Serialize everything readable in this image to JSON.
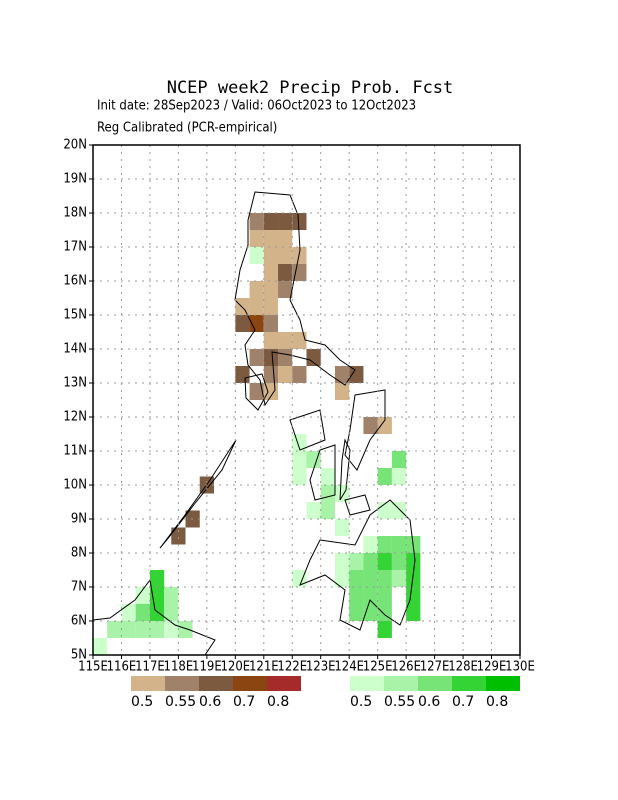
{
  "title": "NCEP week2 Precip Prob. Fcst",
  "subtitle": "Init date: 28Sep2023 / Valid: 06Oct2023 to 12Oct2023",
  "note": "Reg Calibrated (PCR-empirical)",
  "map": {
    "lonlim": [
      115,
      130
    ],
    "latlim": [
      5,
      20
    ],
    "grid": true,
    "lonticks": [
      {
        "value": 115,
        "label": "115E"
      },
      {
        "value": 116,
        "label": "116E"
      },
      {
        "value": 117,
        "label": "117E"
      },
      {
        "value": 118,
        "label": "118E"
      },
      {
        "value": 119,
        "label": "119E"
      },
      {
        "value": 120,
        "label": "120E"
      },
      {
        "value": 121,
        "label": "121E"
      },
      {
        "value": 122,
        "label": "122E"
      },
      {
        "value": 123,
        "label": "123E"
      },
      {
        "value": 124,
        "label": "124E"
      },
      {
        "value": 125,
        "label": "125E"
      },
      {
        "value": 126,
        "label": "126E"
      },
      {
        "value": 127,
        "label": "127E"
      },
      {
        "value": 128,
        "label": "128E"
      },
      {
        "value": 129,
        "label": "129E"
      },
      {
        "value": 130,
        "label": "130E"
      }
    ],
    "latticks": [
      {
        "value": 5,
        "label": "5N"
      },
      {
        "value": 6,
        "label": "6N"
      },
      {
        "value": 7,
        "label": "7N"
      },
      {
        "value": 8,
        "label": "8N"
      },
      {
        "value": 9,
        "label": "9N"
      },
      {
        "value": 10,
        "label": "10N"
      },
      {
        "value": 11,
        "label": "11N"
      },
      {
        "value": 12,
        "label": "12N"
      },
      {
        "value": 13,
        "label": "13N"
      },
      {
        "value": 14,
        "label": "14N"
      },
      {
        "value": 15,
        "label": "15N"
      },
      {
        "value": 16,
        "label": "16N"
      },
      {
        "value": 17,
        "label": "17N"
      },
      {
        "value": 18,
        "label": "18N"
      },
      {
        "value": 19,
        "label": "19N"
      },
      {
        "value": 20,
        "label": "20N"
      }
    ],
    "dry_legend": {
      "colors": [
        "#d3b48a",
        "#a0826a",
        "#7b5a40",
        "#8b4510",
        "#a52a2a"
      ],
      "labels": [
        0.5,
        0.55,
        0.6,
        0.7,
        0.8
      ]
    },
    "wet_legend": {
      "colors": [
        "#ccffcc",
        "#a8f3a8",
        "#76e476",
        "#33d433",
        "#00bf00"
      ],
      "labels": [
        0.5,
        0.55,
        0.6,
        0.7,
        0.8
      ]
    },
    "dry_cells": [
      [
        120.5,
        17.5,
        0.55
      ],
      [
        121,
        17.5,
        0.6
      ],
      [
        121.5,
        17.5,
        0.6
      ],
      [
        122,
        17.5,
        0.6
      ],
      [
        120.5,
        17,
        0.5
      ],
      [
        121,
        17,
        0.5
      ],
      [
        121.5,
        17,
        0.5
      ],
      [
        122,
        16.5,
        0.5
      ],
      [
        121,
        16.5,
        0.5
      ],
      [
        121.5,
        16.5,
        0.5
      ],
      [
        121,
        16,
        0.5
      ],
      [
        121.5,
        16,
        0.6
      ],
      [
        122,
        16,
        0.55
      ],
      [
        120.5,
        15.5,
        0.5
      ],
      [
        121,
        15.5,
        0.5
      ],
      [
        121.5,
        15.5,
        0.55
      ],
      [
        120,
        15,
        0.5
      ],
      [
        120.5,
        15,
        0.5
      ],
      [
        121,
        15,
        0.5
      ],
      [
        120,
        14.5,
        0.6
      ],
      [
        120.5,
        14.5,
        0.7
      ],
      [
        121,
        14.5,
        0.55
      ],
      [
        121,
        14,
        0.5
      ],
      [
        121.5,
        14,
        0.5
      ],
      [
        122,
        14,
        0.5
      ],
      [
        120.5,
        13.5,
        0.55
      ],
      [
        121,
        13.5,
        0.6
      ],
      [
        121.5,
        13.5,
        0.55
      ],
      [
        122.5,
        13.5,
        0.6
      ],
      [
        120,
        13,
        0.6
      ],
      [
        121,
        13,
        0.55
      ],
      [
        121.5,
        13,
        0.5
      ],
      [
        122,
        13,
        0.55
      ],
      [
        123.5,
        13,
        0.55
      ],
      [
        124,
        13,
        0.6
      ],
      [
        120.5,
        12.5,
        0.55
      ],
      [
        121,
        12.5,
        0.5
      ],
      [
        123.5,
        12.5,
        0.5
      ],
      [
        124.5,
        11.5,
        0.55
      ],
      [
        125,
        11.5,
        0.5
      ],
      [
        118.75,
        9.75,
        0.6
      ],
      [
        118.25,
        8.75,
        0.6
      ],
      [
        117.75,
        8.25,
        0.6
      ]
    ],
    "wet_cells": [
      [
        120.5,
        16.5,
        0.5
      ],
      [
        122,
        11,
        0.5
      ],
      [
        122,
        10.5,
        0.5
      ],
      [
        122.5,
        10.5,
        0.55
      ],
      [
        122,
        10,
        0.5
      ],
      [
        123,
        10,
        0.5
      ],
      [
        123,
        9.5,
        0.55
      ],
      [
        123.5,
        9.5,
        0.5
      ],
      [
        122.5,
        9,
        0.5
      ],
      [
        123,
        9,
        0.55
      ],
      [
        123.5,
        8.5,
        0.5
      ],
      [
        125,
        10,
        0.6
      ],
      [
        125.5,
        10.5,
        0.6
      ],
      [
        125.5,
        10,
        0.5
      ],
      [
        125,
        9,
        0.5
      ],
      [
        125.5,
        9,
        0.5
      ],
      [
        124.5,
        8,
        0.5
      ],
      [
        125,
        8,
        0.6
      ],
      [
        125.5,
        8,
        0.6
      ],
      [
        126,
        8,
        0.6
      ],
      [
        123.5,
        7.5,
        0.5
      ],
      [
        124,
        7.5,
        0.55
      ],
      [
        124.5,
        7.5,
        0.6
      ],
      [
        125,
        7.5,
        0.7
      ],
      [
        125.5,
        7.5,
        0.6
      ],
      [
        126,
        7.5,
        0.7
      ],
      [
        122,
        7,
        0.5
      ],
      [
        123.5,
        7,
        0.5
      ],
      [
        124,
        7,
        0.6
      ],
      [
        124.5,
        7,
        0.6
      ],
      [
        125,
        7,
        0.6
      ],
      [
        125.5,
        7,
        0.55
      ],
      [
        126,
        7,
        0.7
      ],
      [
        124,
        6.5,
        0.6
      ],
      [
        124.5,
        6.5,
        0.6
      ],
      [
        125,
        6.5,
        0.6
      ],
      [
        126,
        6.5,
        0.7
      ],
      [
        124,
        6,
        0.6
      ],
      [
        124.5,
        6,
        0.6
      ],
      [
        125,
        6,
        0.6
      ],
      [
        126,
        6,
        0.7
      ],
      [
        125,
        5.5,
        0.7
      ],
      [
        117,
        7,
        0.7
      ],
      [
        117,
        6.5,
        0.7
      ],
      [
        116.5,
        6.5,
        0.5
      ],
      [
        117.5,
        6.5,
        0.55
      ],
      [
        116,
        6,
        0.5
      ],
      [
        116.5,
        6,
        0.6
      ],
      [
        117,
        6,
        0.7
      ],
      [
        117.5,
        6,
        0.55
      ],
      [
        115.5,
        5.5,
        0.55
      ],
      [
        116,
        5.5,
        0.55
      ],
      [
        116.5,
        5.5,
        0.55
      ],
      [
        117,
        5.5,
        0.55
      ],
      [
        117.5,
        5.5,
        0.5
      ],
      [
        118,
        5.5,
        0.55
      ],
      [
        115,
        5,
        0.5
      ]
    ]
  }
}
